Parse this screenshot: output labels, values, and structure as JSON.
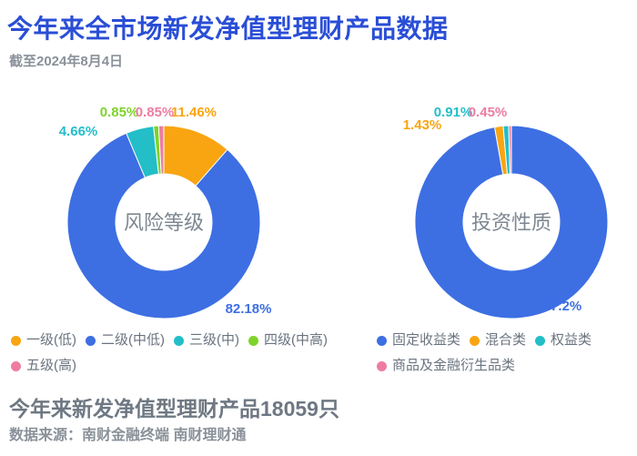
{
  "header": {
    "title": "今年来全市场新发净值型理财产品数据",
    "subtitle": "截至2024年8月4日"
  },
  "footer": {
    "summary": "今年来新发净值型理财产品18059只",
    "source": "数据来源：南财金融终端 南财理财通"
  },
  "colors": {
    "title_blue": "#2A4ED6",
    "series_blue": "#3D6FE3",
    "series_orange": "#F9A511",
    "series_teal": "#23BEC8",
    "series_green": "#7ED32A",
    "series_pink": "#EE7CA1"
  },
  "chart_data": [
    {
      "type": "pie",
      "subtype": "donut",
      "title": "风险等级",
      "legend_position": "bottom",
      "start_angle_deg": 0,
      "direction": "clockwise",
      "series": [
        {
          "name": "一级(低)",
          "value": 11.46,
          "label": "11.46%",
          "color": "#F9A511"
        },
        {
          "name": "二级(中低)",
          "value": 82.18,
          "label": "82.18%",
          "color": "#3D6FE3"
        },
        {
          "name": "三级(中)",
          "value": 4.66,
          "label": "4.66%",
          "color": "#23BEC8"
        },
        {
          "name": "四级(中高)",
          "value": 0.85,
          "label": "0.85%",
          "color": "#7ED32A"
        },
        {
          "name": "五级(高)",
          "value": 0.85,
          "label": "0.85%",
          "color": "#EE7CA1"
        }
      ]
    },
    {
      "type": "pie",
      "subtype": "donut",
      "title": "投资性质",
      "legend_position": "bottom",
      "start_angle_deg": 0,
      "direction": "clockwise",
      "series": [
        {
          "name": "固定收益类",
          "value": 97.2,
          "label": "97.2%",
          "color": "#3D6FE3"
        },
        {
          "name": "混合类",
          "value": 1.43,
          "label": "1.43%",
          "color": "#F9A511"
        },
        {
          "name": "权益类",
          "value": 0.91,
          "label": "0.91%",
          "color": "#23BEC8"
        },
        {
          "name": "商品及金融衍生品类",
          "value": 0.45,
          "label": "0.45%",
          "color": "#EE7CA1"
        }
      ]
    }
  ]
}
